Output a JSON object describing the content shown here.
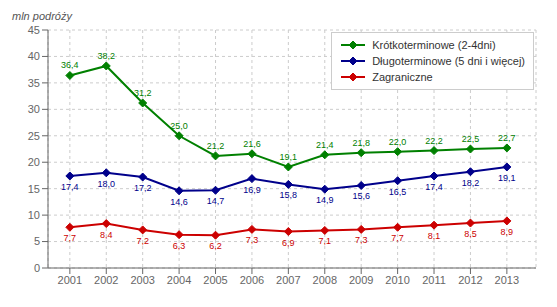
{
  "chart_data": {
    "type": "line",
    "ylabel": "mln podróży",
    "x": [
      2001,
      2002,
      2003,
      2004,
      2005,
      2006,
      2007,
      2008,
      2009,
      2010,
      2011,
      2012,
      2013
    ],
    "xlim": [
      2000.4,
      2013.8
    ],
    "xticks": [
      2001,
      2002,
      2003,
      2004,
      2005,
      2006,
      2007,
      2008,
      2009,
      2010,
      2011,
      2012,
      2013
    ],
    "ylim": [
      0,
      45
    ],
    "yticks": [
      0,
      5,
      10,
      15,
      20,
      25,
      30,
      35,
      40,
      45
    ],
    "grid": true,
    "legend": "upper right",
    "data_labels": true,
    "marker": "diamond",
    "series": [
      {
        "name": "Krótkoterminowe (2-4dni)",
        "color": "#008000",
        "values": [
          36.4,
          38.2,
          31.2,
          25.0,
          21.2,
          21.6,
          19.1,
          21.4,
          21.8,
          22.0,
          22.2,
          22.5,
          22.7
        ],
        "value_labels": [
          "36,4",
          "38,2",
          "31,2",
          "25,0",
          "21,2",
          "21,6",
          "19,1",
          "21,4",
          "21,8",
          "22,0",
          "22,2",
          "22,5",
          "22,7"
        ]
      },
      {
        "name": "Długoterminowe (5 dni i więcej)",
        "color": "#00008B",
        "values": [
          17.4,
          18.0,
          17.2,
          14.6,
          14.7,
          16.9,
          15.8,
          14.9,
          15.6,
          16.5,
          17.4,
          18.2,
          19.1
        ],
        "value_labels": [
          "17,4",
          "18,0",
          "17,2",
          "14,6",
          "14,7",
          "16,9",
          "15,8",
          "14,9",
          "15,6",
          "16,5",
          "17,4",
          "18,2",
          "19,1"
        ]
      },
      {
        "name": "Zagraniczne",
        "color": "#CC0000",
        "values": [
          7.7,
          8.4,
          7.2,
          6.3,
          6.2,
          7.3,
          6.9,
          7.1,
          7.3,
          7.7,
          8.1,
          8.5,
          8.9
        ],
        "value_labels": [
          "7,7",
          "8,4",
          "7,2",
          "6,3",
          "6,2",
          "7,3",
          "6,9",
          "7,1",
          "7,3",
          "7,7",
          "8,1",
          "8,5",
          "8,9"
        ]
      }
    ]
  }
}
